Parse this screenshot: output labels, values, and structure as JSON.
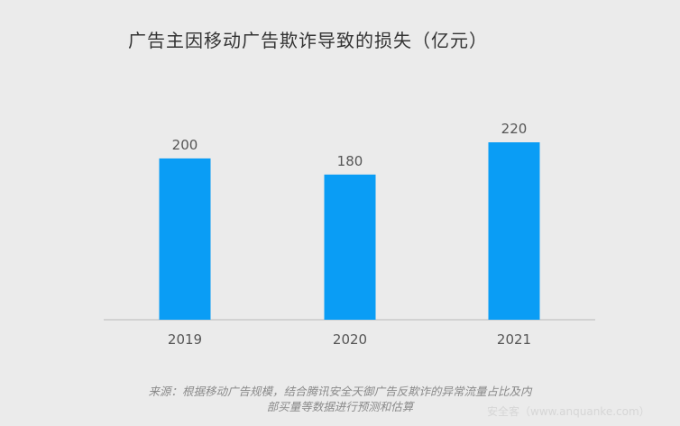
{
  "chart_data": {
    "type": "bar",
    "title": "广告主因移动广告欺诈导致的损失（亿元）",
    "categories": [
      "2019",
      "2020",
      "2021"
    ],
    "values": [
      200,
      180,
      220
    ],
    "ylim": [
      0,
      220
    ],
    "grid": false,
    "legend": "none",
    "bar_color": "#0a9df5",
    "axis_color": "#c9c9c9",
    "label_color": "#555555"
  },
  "footer": {
    "source_line1": "来源：根据移动广告规模，结合腾讯安全天御广告反欺诈的异常流量占比及内",
    "source_line2": "部买量等数据进行预测和估算",
    "watermark": "安全客（www.anquanke.com）"
  }
}
